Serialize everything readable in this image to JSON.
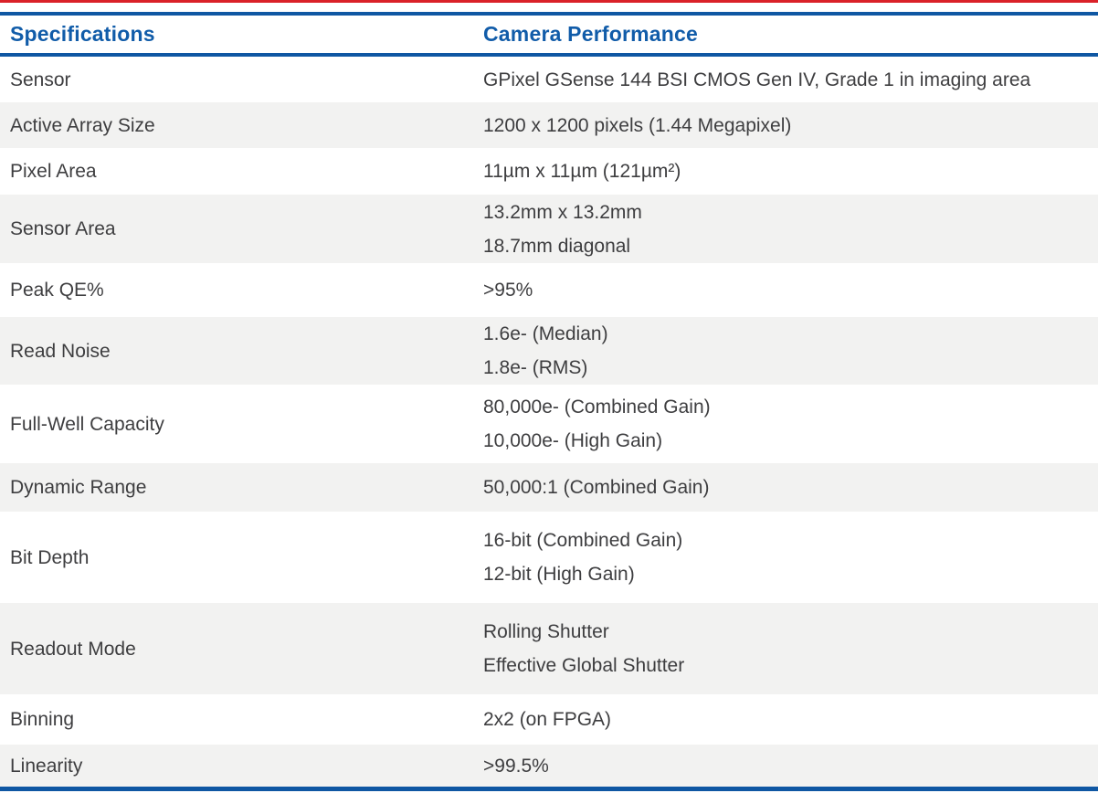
{
  "page": {
    "accent_red": "#da2128",
    "accent_blue": "#0f57a3",
    "alt_row_bg": "#f2f2f1",
    "text_color": "#3e3e40"
  },
  "table": {
    "header": {
      "col1": "Specifications",
      "col2": "Camera Performance"
    },
    "rows": [
      {
        "label": "Sensor",
        "values": [
          "GPixel GSense 144 BSI CMOS Gen IV, Grade 1 in imaging area"
        ]
      },
      {
        "label": "Active Array Size",
        "values": [
          "1200 x 1200 pixels (1.44 Megapixel)"
        ]
      },
      {
        "label": "Pixel Area",
        "values": [
          "11µm x 11µm (121µm²)"
        ]
      },
      {
        "label": "Sensor Area",
        "values": [
          "13.2mm x 13.2mm",
          "18.7mm diagonal"
        ]
      },
      {
        "label": "Peak QE%",
        "values": [
          ">95%"
        ]
      },
      {
        "label": "Read Noise",
        "values": [
          "1.6e- (Median)",
          "1.8e- (RMS)"
        ]
      },
      {
        "label": "Full-Well Capacity",
        "values": [
          "80,000e- (Combined Gain)",
          "10,000e- (High Gain)"
        ]
      },
      {
        "label": "Dynamic Range",
        "values": [
          "50,000:1 (Combined Gain)"
        ]
      },
      {
        "label": "Bit Depth",
        "values": [
          "16-bit (Combined Gain)",
          "12-bit (High Gain)"
        ]
      },
      {
        "label": "Readout Mode",
        "values": [
          "Rolling Shutter",
          "Effective Global Shutter"
        ]
      },
      {
        "label": "Binning",
        "values": [
          "2x2 (on FPGA)"
        ]
      },
      {
        "label": "Linearity",
        "values": [
          ">99.5%"
        ]
      }
    ]
  }
}
